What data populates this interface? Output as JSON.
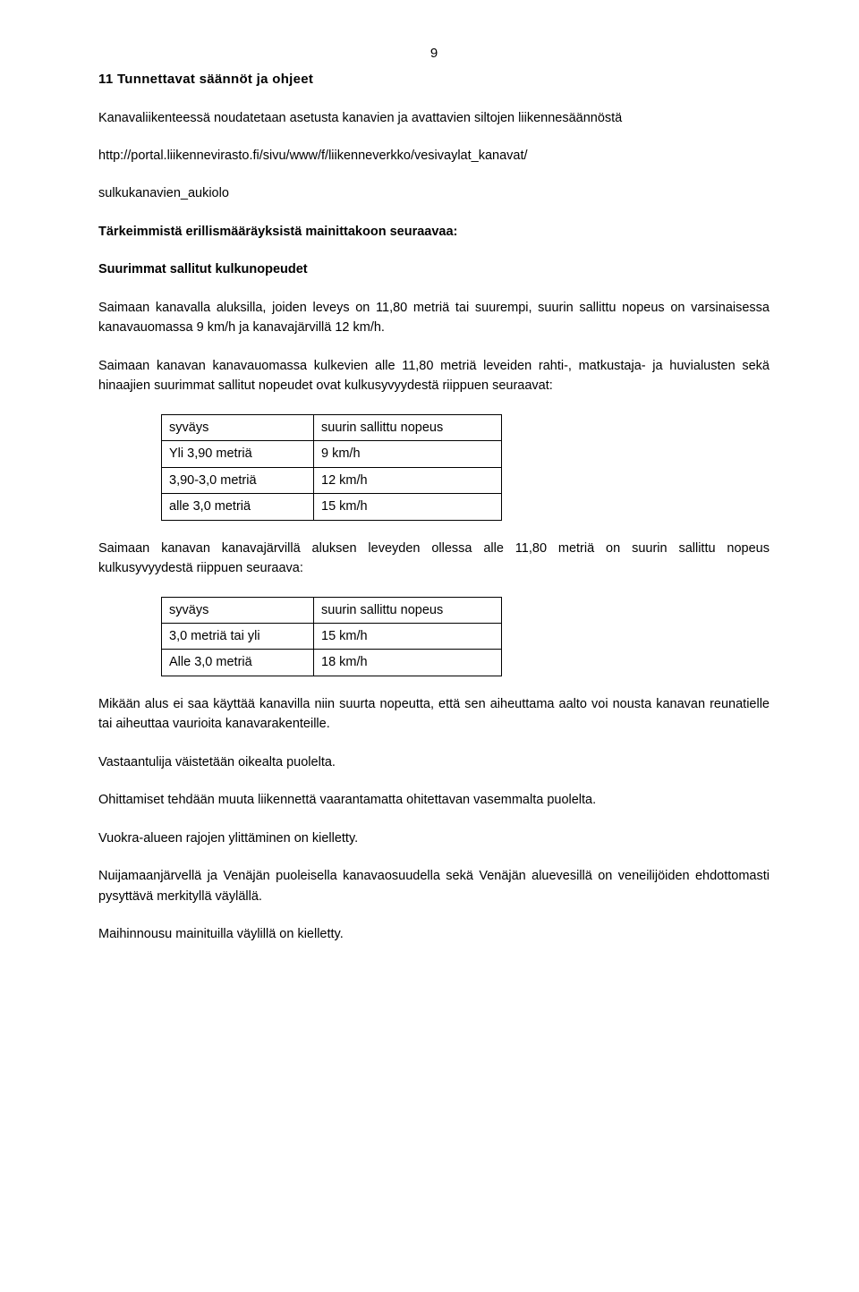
{
  "page_number": "9",
  "section_number": "11",
  "section_title": "Tunnettavat säännöt ja ohjeet",
  "intro": "Kanavaliikenteessä noudatetaan asetusta kanavien ja avattavien siltojen liikennesäännöstä",
  "url_line1": "http://portal.liikennevirasto.fi/sivu/www/f/liikenneverkko/vesivaylat_kanavat/",
  "url_line2": "sulkukanavien_aukiolo",
  "lead_in": "Tärkeimmistä erillismääräyksistä mainittakoon seuraavaa:",
  "subheading": "Suurimmat sallitut kulkunopeudet",
  "para1": "Saimaan kanavalla aluksilla, joiden leveys on 11,80 metriä tai suurempi, suurin sallittu nopeus on varsinaisessa kanavauomassa 9 km/h ja kanavajärvillä 12 km/h.",
  "para2": "Saimaan kanavan kanavauomassa kulkevien alle 11,80 metriä leveiden rahti-, matkustaja- ja huvialusten sekä hinaajien suurimmat sallitut nopeudet ovat kulkusyvyydestä riippuen seuraavat:",
  "table1": {
    "header": {
      "c1": "syväys",
      "c2": "suurin sallittu nopeus"
    },
    "rows": [
      {
        "c1": "Yli 3,90 metriä",
        "c2": "9 km/h"
      },
      {
        "c1": "3,90-3,0 metriä",
        "c2": "12 km/h"
      },
      {
        "c1": "alle 3,0 metriä",
        "c2": "15 km/h"
      }
    ]
  },
  "para3": "Saimaan kanavan kanavajärvillä aluksen leveyden ollessa alle 11,80 metriä on suurin sallittu nopeus kulkusyvyydestä riippuen seuraava:",
  "table2": {
    "header": {
      "c1": "syväys",
      "c2": "suurin sallittu nopeus"
    },
    "rows": [
      {
        "c1": "3,0 metriä tai yli",
        "c2": "15 km/h"
      },
      {
        "c1": "Alle 3,0 metriä",
        "c2": "18 km/h"
      }
    ]
  },
  "para4": "Mikään alus ei saa käyttää kanavilla niin suurta nopeutta, että sen aiheuttama aalto voi nousta kanavan reunatielle tai aiheuttaa vaurioita kanavarakenteille.",
  "para5": "Vastaantulija väistetään oikealta puolelta.",
  "para6": "Ohittamiset tehdään muuta liikennettä vaarantamatta ohitettavan vasemmalta puolelta.",
  "para7": "Vuokra-alueen rajojen ylittäminen on kielletty.",
  "para8": "Nuijamaanjärvellä ja Venäjän puoleisella kanavaosuudella sekä Venäjän aluevesillä on veneilijöiden ehdottomasti pysyttävä merkityllä väylällä.",
  "para9": "Maihinnousu mainituilla väylillä on kielletty."
}
